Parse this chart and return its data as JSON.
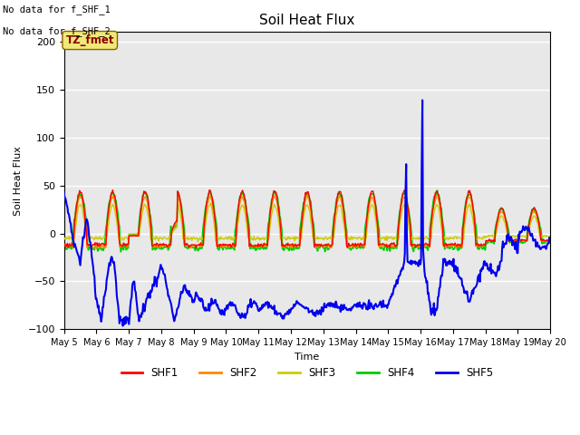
{
  "title": "Soil Heat Flux",
  "ylabel": "Soil Heat Flux",
  "xlabel": "Time",
  "ylim": [
    -100,
    210
  ],
  "yticks": [
    -100,
    -50,
    0,
    50,
    100,
    150,
    200
  ],
  "note1": "No data for f_SHF_1",
  "note2": "No data for f_SHF_2",
  "box_label": "TZ_fmet",
  "legend_labels": [
    "SHF1",
    "SHF2",
    "SHF3",
    "SHF4",
    "SHF5"
  ],
  "colors": {
    "SHF1": "#ff0000",
    "SHF2": "#ff8800",
    "SHF3": "#cccc00",
    "SHF4": "#00cc00",
    "SHF5": "#0000ee"
  },
  "fig_facecolor": "#ffffff",
  "plot_bg": "#e8e8e8",
  "xtick_labels": [
    "May 5",
    "May 6",
    "May 7",
    "May 8",
    "May 9",
    "May 10",
    "May 11",
    "May 12",
    "May 13",
    "May 14",
    "May 15",
    "May 16",
    "May 17",
    "May 18",
    "May 19",
    "May 20"
  ]
}
